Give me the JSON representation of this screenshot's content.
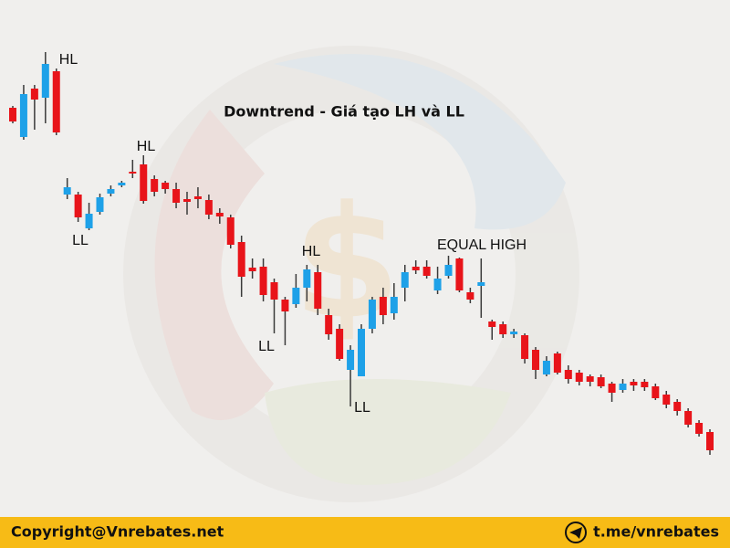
{
  "chart_data": {
    "type": "candlestick",
    "title": "Downtrend - Giá tạo LH và LL",
    "up_color": "#1ea1e8",
    "down_color": "#e8141a",
    "wick_color": "#3a3a3a",
    "ylim": [
      0,
      500
    ],
    "open": [
      382,
      350,
      403,
      393,
      422,
      287,
      287,
      250,
      268,
      288,
      297,
      312,
      320,
      304,
      300,
      293,
      282,
      285,
      281,
      267,
      262,
      235,
      207,
      208,
      191,
      172,
      167,
      185,
      202,
      155,
      140,
      95,
      88,
      140,
      175,
      157,
      185,
      208,
      208,
      182,
      198,
      217,
      180,
      187,
      148,
      145,
      134,
      133,
      117,
      90,
      113,
      95,
      92,
      88,
      87,
      80,
      73,
      82,
      82,
      77,
      68,
      60,
      50,
      37,
      27
    ],
    "high": [
      384,
      407,
      407,
      443,
      425,
      305,
      290,
      278,
      288,
      297,
      302,
      325,
      330,
      308,
      302,
      300,
      290,
      295,
      287,
      272,
      265,
      242,
      217,
      217,
      195,
      175,
      200,
      210,
      210,
      162,
      145,
      122,
      145,
      175,
      185,
      190,
      210,
      215,
      215,
      208,
      220,
      218,
      185,
      217,
      150,
      148,
      140,
      135,
      120,
      110,
      115,
      100,
      95,
      90,
      90,
      82,
      85,
      85,
      85,
      80,
      72,
      63,
      53,
      40,
      30
    ],
    "low": [
      365,
      347,
      358,
      365,
      352,
      282,
      257,
      248,
      265,
      285,
      295,
      305,
      277,
      285,
      288,
      272,
      265,
      272,
      260,
      255,
      228,
      175,
      195,
      170,
      135,
      122,
      163,
      170,
      155,
      128,
      105,
      55,
      88,
      135,
      145,
      150,
      170,
      200,
      195,
      178,
      195,
      180,
      168,
      152,
      128,
      130,
      130,
      102,
      85,
      88,
      90,
      80,
      78,
      77,
      75,
      60,
      70,
      72,
      72,
      62,
      53,
      45,
      32,
      22,
      2
    ],
    "close": [
      367,
      397,
      391,
      430,
      355,
      295,
      262,
      266,
      284,
      293,
      300,
      310,
      280,
      290,
      293,
      278,
      279,
      282,
      265,
      263,
      232,
      197,
      203,
      177,
      172,
      159,
      185,
      205,
      162,
      134,
      107,
      117,
      140,
      172,
      155,
      175,
      202,
      204,
      198,
      195,
      210,
      182,
      172,
      191,
      142,
      134,
      137,
      107,
      95,
      105,
      92,
      85,
      82,
      82,
      77,
      70,
      80,
      78,
      76,
      64,
      57,
      50,
      35,
      25,
      7
    ],
    "annotations": [
      "HL",
      "HL",
      "LL",
      "HL",
      "LL",
      "EQUAL HIGH",
      "LL"
    ]
  },
  "footer": {
    "left": "Copyright@Vnrebates.net",
    "right": "t.me/vnrebates"
  }
}
